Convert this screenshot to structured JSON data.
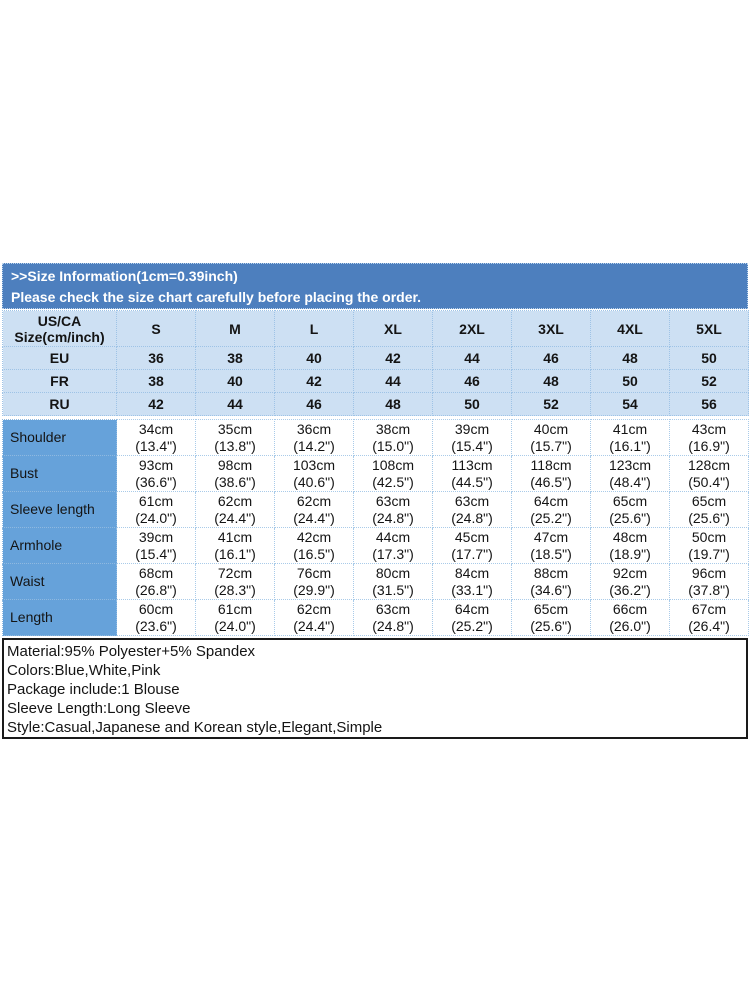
{
  "banner": {
    "title": ">>Size Information(1cm=0.39inch)",
    "warning": "Please check the size chart carefully before placing the order."
  },
  "table": {
    "corner_header": "US/CA Size(cm/inch)",
    "size_columns": [
      "S",
      "M",
      "L",
      "XL",
      "2XL",
      "3XL",
      "4XL",
      "5XL"
    ],
    "region_rows": [
      {
        "label": "EU",
        "values": [
          "36",
          "38",
          "40",
          "42",
          "44",
          "46",
          "48",
          "50"
        ]
      },
      {
        "label": "FR",
        "values": [
          "38",
          "40",
          "42",
          "44",
          "46",
          "48",
          "50",
          "52"
        ]
      },
      {
        "label": "RU",
        "values": [
          "42",
          "44",
          "46",
          "48",
          "50",
          "52",
          "54",
          "56"
        ]
      }
    ],
    "measurement_rows": [
      {
        "label": "Shoulder",
        "cm": [
          "34cm",
          "35cm",
          "36cm",
          "38cm",
          "39cm",
          "40cm",
          "41cm",
          "43cm"
        ],
        "inch": [
          "(13.4\")",
          "(13.8\")",
          "(14.2\")",
          "(15.0\")",
          "(15.4\")",
          "(15.7\")",
          "(16.1\")",
          "(16.9\")"
        ]
      },
      {
        "label": "Bust",
        "cm": [
          "93cm",
          "98cm",
          "103cm",
          "108cm",
          "113cm",
          "118cm",
          "123cm",
          "128cm"
        ],
        "inch": [
          "(36.6\")",
          "(38.6\")",
          "(40.6\")",
          "(42.5\")",
          "(44.5\")",
          "(46.5\")",
          "(48.4\")",
          "(50.4\")"
        ]
      },
      {
        "label": "Sleeve length",
        "cm": [
          "61cm",
          "62cm",
          "62cm",
          "63cm",
          "63cm",
          "64cm",
          "65cm",
          "65cm"
        ],
        "inch": [
          "(24.0\")",
          "(24.4\")",
          "(24.4\")",
          "(24.8\")",
          "(24.8\")",
          "(25.2\")",
          "(25.6\")",
          "(25.6\")"
        ]
      },
      {
        "label": "Armhole",
        "cm": [
          "39cm",
          "41cm",
          "42cm",
          "44cm",
          "45cm",
          "47cm",
          "48cm",
          "50cm"
        ],
        "inch": [
          "(15.4\")",
          "(16.1\")",
          "(16.5\")",
          "(17.3\")",
          "(17.7\")",
          "(18.5\")",
          "(18.9\")",
          "(19.7\")"
        ]
      },
      {
        "label": "Waist",
        "cm": [
          "68cm",
          "72cm",
          "76cm",
          "80cm",
          "84cm",
          "88cm",
          "92cm",
          "96cm"
        ],
        "inch": [
          "(26.8\")",
          "(28.3\")",
          "(29.9\")",
          "(31.5\")",
          "(33.1\")",
          "(34.6\")",
          "(36.2\")",
          "(37.8\")"
        ]
      },
      {
        "label": "Length",
        "cm": [
          "60cm",
          "61cm",
          "62cm",
          "63cm",
          "64cm",
          "65cm",
          "66cm",
          "67cm"
        ],
        "inch": [
          "(23.6\")",
          "(24.0\")",
          "(24.4\")",
          "(24.8\")",
          "(25.2\")",
          "(25.6\")",
          "(26.0\")",
          "(26.4\")"
        ]
      }
    ]
  },
  "product_info": {
    "lines": [
      "Material:95% Polyester+5% Spandex",
      "Colors:Blue,White,Pink",
      "Package include:1 Blouse",
      "Sleeve Length:Long Sleeve",
      "Style:Casual,Japanese and Korean style,Elegant,Simple"
    ]
  },
  "colors": {
    "banner_bg": "#4d7fbe",
    "banner_text": "#ffffff",
    "light_row_bg": "#cde0f3",
    "label_col_bg": "#66a2da",
    "grid_line": "#9ec3e6",
    "text_color": "#141414",
    "info_border": "#1a1a1a"
  }
}
